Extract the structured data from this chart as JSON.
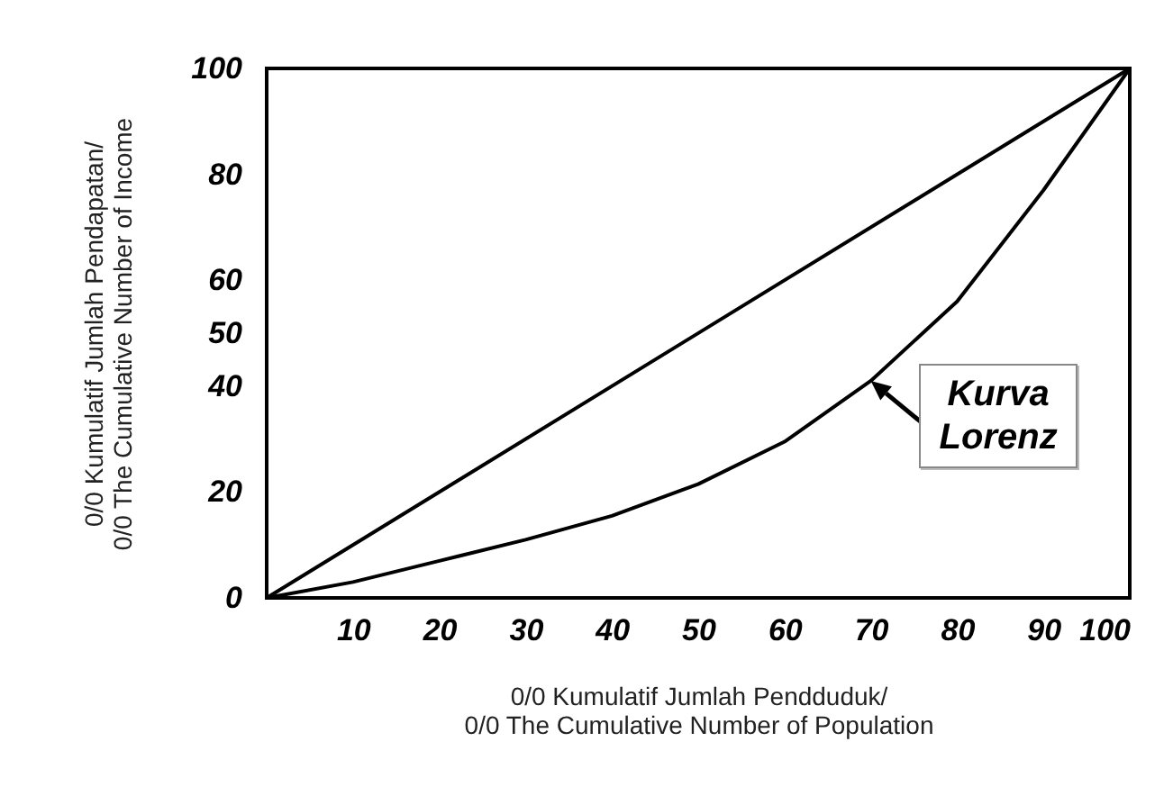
{
  "chart_data": {
    "type": "line",
    "xlabel": "0/0 Kumulatif Jumlah Pendduduk/\n0/0 The Cumulative Number of Population",
    "ylabel": "0/0 Kumulatif Jumlah Pendapatan/\n0/0 The Cumulative Number of Income",
    "xlim": [
      0,
      100
    ],
    "xticks": [
      10,
      20,
      30,
      40,
      50,
      60,
      70,
      80,
      90,
      100
    ],
    "ylim": [
      0,
      100
    ],
    "yticks": [
      0,
      20,
      40,
      50,
      60,
      80,
      100
    ],
    "grid": false,
    "series": [
      {
        "color": "#000000",
        "x": [
          0,
          100
        ],
        "values": [
          0,
          100
        ]
      },
      {
        "color": "#000000",
        "x": [
          0,
          10,
          20,
          30,
          40,
          50,
          60,
          70,
          80,
          90,
          100
        ],
        "values": [
          0,
          3,
          7,
          11,
          15.5,
          21.5,
          29.5,
          41,
          56,
          77,
          100
        ]
      }
    ],
    "annotations": [
      {
        "text": "Kurva\nLorenz",
        "x": 70,
        "y": 41
      }
    ]
  }
}
